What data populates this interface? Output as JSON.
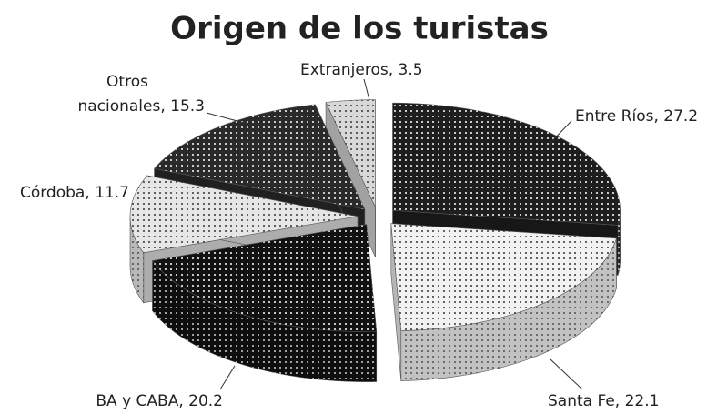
{
  "chart_data": {
    "type": "pie",
    "title": "Origen de los turistas",
    "values": [
      27.2,
      22.1,
      20.2,
      11.7,
      15.3,
      3.5
    ],
    "value_labels": [
      "Entre Ríos, 27.2",
      "Santa Fe, 22.1",
      "BA y CABA, 20.2",
      "Córdoba, 11.7",
      [
        "Otros",
        "nacionales, 15.3"
      ],
      "Extranjeros, 3.5"
    ],
    "colors": [
      "#1e1e1e",
      "#f2f2f2",
      "#111111",
      "#e6e6e6",
      "#2a2a2a",
      "#d8d8d8"
    ]
  }
}
